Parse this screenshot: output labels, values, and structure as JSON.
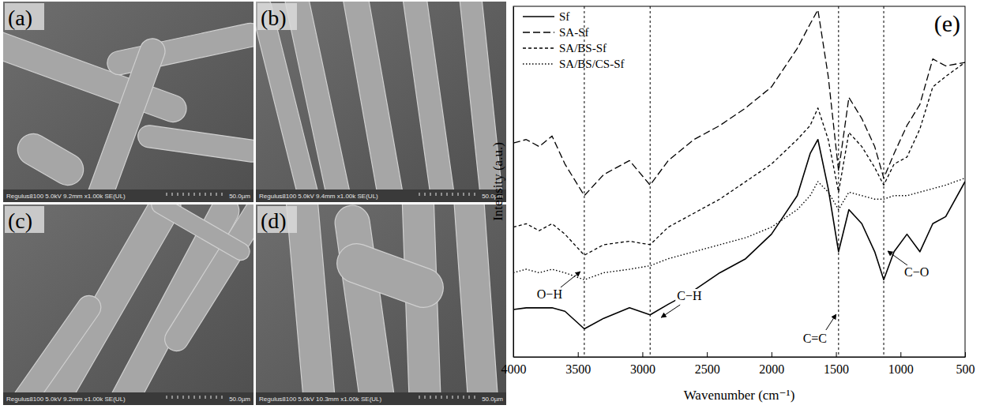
{
  "images": [
    {
      "label": "(a)",
      "info": "Regulus8100 5.0kV 9.2mm x1.00k SE(UL)",
      "scale_bar": "50.0µm"
    },
    {
      "label": "(b)",
      "info": "Regulus8100 5.0kV 9.4mm x1.00k SE(UL)",
      "scale_bar": "50.0µm"
    },
    {
      "label": "(c)",
      "info": "Regulus8100 5.0kV 9.2mm x1.00k SE(UL)",
      "scale_bar": "50.0µm"
    },
    {
      "label": "(d)",
      "info": "Regulus8100 5.0kV 10.3mm x1.00k SE(UL)",
      "scale_bar": "50.0µm"
    }
  ],
  "chart_data": {
    "type": "line",
    "panel": "(e)",
    "x_label": "Wavenumber (cm⁻¹)",
    "y_label": "Intensity (a.u.)",
    "xlim": [
      4000,
      500
    ],
    "xticks": [
      4000,
      3500,
      3000,
      2500,
      2000,
      1500,
      1000,
      500
    ],
    "ylim": [
      0,
      100
    ],
    "tick_labels": "x",
    "legend": "upper left",
    "x": [
      4000,
      3900,
      3800,
      3700,
      3600,
      3450,
      3300,
      3100,
      2940,
      2800,
      2600,
      2400,
      2200,
      2000,
      1800,
      1700,
      1640,
      1560,
      1480,
      1400,
      1300,
      1200,
      1130,
      1050,
      950,
      850,
      750,
      650,
      500
    ],
    "series": [
      {
        "name": "Sf",
        "color": "#000000",
        "line_style": "solid",
        "values": [
          13.5,
          14,
          14,
          14,
          13,
          8,
          11,
          14,
          12,
          15,
          19,
          24,
          28,
          35,
          46,
          58,
          62,
          48,
          30,
          42,
          38,
          30,
          22,
          30,
          35,
          30,
          38,
          40,
          50
        ]
      },
      {
        "name": "SA-Sf",
        "color": "#000000",
        "line_style": "long-dash",
        "values": [
          61,
          62,
          60,
          63,
          55,
          46,
          52,
          56,
          49,
          56,
          62,
          66,
          71,
          77,
          88,
          95,
          99,
          80,
          53,
          74,
          68,
          60,
          51,
          58,
          66,
          72,
          85,
          83,
          84
        ]
      },
      {
        "name": "SA/BS-Sf",
        "color": "#000000",
        "line_style": "dash",
        "values": [
          37,
          38,
          36,
          38,
          35,
          29,
          32,
          33,
          32,
          37,
          41,
          45,
          50,
          55,
          62,
          66,
          71,
          62,
          47,
          64,
          60,
          54,
          49,
          55,
          57,
          65,
          77,
          80,
          84
        ]
      },
      {
        "name": "SA/BS/CS-Sf",
        "color": "#000000",
        "line_style": "dot",
        "values": [
          24,
          25,
          24,
          25,
          24,
          22,
          24,
          25,
          26,
          28,
          30,
          32,
          34,
          37,
          42,
          46,
          50,
          47,
          42,
          47,
          46,
          45,
          45,
          46,
          46,
          47,
          48,
          49,
          51
        ]
      }
    ],
    "annotations": [
      {
        "text": "O−H",
        "x": 3450
      },
      {
        "text": "C−H",
        "x": 2940
      },
      {
        "text": "C=C",
        "x": 1480
      },
      {
        "text": "C−O",
        "x": 1130
      }
    ]
  }
}
